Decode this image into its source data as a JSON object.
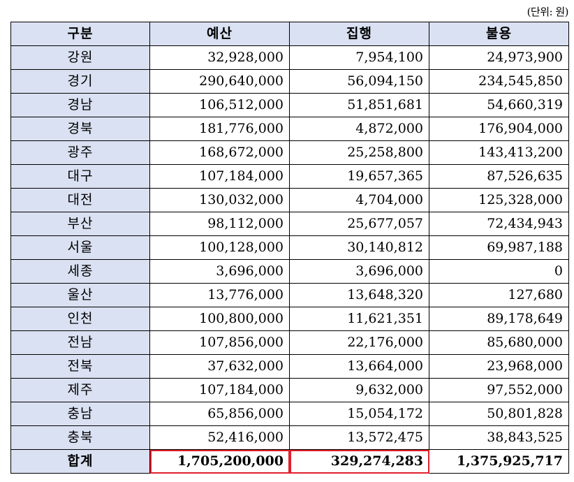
{
  "unit_note": "(단위: 원)",
  "header": {
    "col_category": "구분",
    "col_budget": "예산",
    "col_executed": "집행",
    "col_unused": "불용"
  },
  "rows": [
    {
      "region": "강원",
      "budget": "32,928,000",
      "executed": "7,954,100",
      "unused": "24,973,900"
    },
    {
      "region": "경기",
      "budget": "290,640,000",
      "executed": "56,094,150",
      "unused": "234,545,850"
    },
    {
      "region": "경남",
      "budget": "106,512,000",
      "executed": "51,851,681",
      "unused": "54,660,319"
    },
    {
      "region": "경북",
      "budget": "181,776,000",
      "executed": "4,872,000",
      "unused": "176,904,000"
    },
    {
      "region": "광주",
      "budget": "168,672,000",
      "executed": "25,258,800",
      "unused": "143,413,200"
    },
    {
      "region": "대구",
      "budget": "107,184,000",
      "executed": "19,657,365",
      "unused": "87,526,635"
    },
    {
      "region": "대전",
      "budget": "130,032,000",
      "executed": "4,704,000",
      "unused": "125,328,000"
    },
    {
      "region": "부산",
      "budget": "98,112,000",
      "executed": "25,677,057",
      "unused": "72,434,943"
    },
    {
      "region": "서울",
      "budget": "100,128,000",
      "executed": "30,140,812",
      "unused": "69,987,188"
    },
    {
      "region": "세종",
      "budget": "3,696,000",
      "executed": "3,696,000",
      "unused": "0"
    },
    {
      "region": "울산",
      "budget": "13,776,000",
      "executed": "13,648,320",
      "unused": "127,680"
    },
    {
      "region": "인천",
      "budget": "100,800,000",
      "executed": "11,621,351",
      "unused": "89,178,649"
    },
    {
      "region": "전남",
      "budget": "107,856,000",
      "executed": "22,176,000",
      "unused": "85,680,000"
    },
    {
      "region": "전북",
      "budget": "37,632,000",
      "executed": "13,664,000",
      "unused": "23,968,000"
    },
    {
      "region": "제주",
      "budget": "107,184,000",
      "executed": "9,632,000",
      "unused": "97,552,000"
    },
    {
      "region": "충남",
      "budget": "65,856,000",
      "executed": "15,054,172",
      "unused": "50,801,828"
    },
    {
      "region": "충북",
      "budget": "52,416,000",
      "executed": "13,572,475",
      "unused": "38,843,525"
    }
  ],
  "total": {
    "label": "합계",
    "budget": "1,705,200,000",
    "executed": "329,274,283",
    "unused": "1,375,925,717"
  },
  "colors": {
    "header_fill": "#d9e1f2",
    "highlight_border": "#e0202c"
  }
}
